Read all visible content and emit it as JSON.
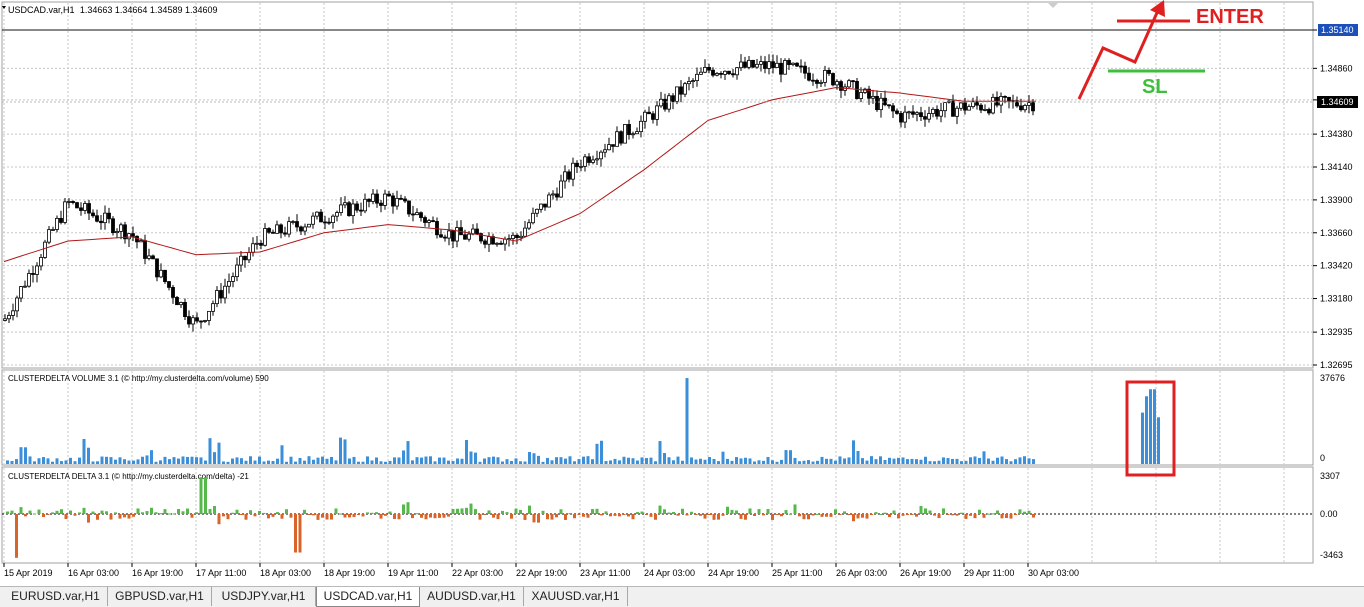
{
  "window": {
    "title": "USDCAD.var,H1",
    "ohlc": "1.34663 1.34664 1.34589 1.34609"
  },
  "price_axis": {
    "labels": [
      "1.35140",
      "1.34860",
      "1.34630",
      "1.34380",
      "1.34140",
      "1.33900",
      "1.33660",
      "1.33420",
      "1.33180",
      "1.32935",
      "1.32695"
    ],
    "marker_line": "1.35140",
    "current_price": "1.34609"
  },
  "annotations": {
    "enter_label": "ENTER",
    "sl_label": "SL",
    "enter_color": "#e02020",
    "sl_color": "#3cc03c"
  },
  "volume_panel": {
    "title": "CLUSTERDELTA VOLUME 3.1 (© http://my.clusterdelta.com/volume) 590",
    "axis_max": "37676",
    "axis_min": "0"
  },
  "delta_panel": {
    "title": "CLUSTERDELTA DELTA 3.1 (© http://my.clusterdelta.com/delta) -21",
    "axis_max": "3307",
    "axis_zero": "0.00",
    "axis_min": "-3463"
  },
  "time_axis": {
    "labels": [
      "15 Apr 2019",
      "16 Apr 03:00",
      "16 Apr 19:00",
      "17 Apr 11:00",
      "18 Apr 03:00",
      "18 Apr 19:00",
      "19 Apr 11:00",
      "22 Apr 03:00",
      "22 Apr 19:00",
      "23 Apr 11:00",
      "24 Apr 03:00",
      "24 Apr 19:00",
      "25 Apr 11:00",
      "26 Apr 03:00",
      "26 Apr 19:00",
      "29 Apr 11:00",
      "30 Apr 03:00"
    ]
  },
  "tabs": [
    "EURUSD.var,H1",
    "GBPUSD.var,H1",
    "USDJPY.var,H1",
    "USDCAD.var,H1",
    "AUDUSD.var,H1",
    "XAUUSD.var,H1"
  ],
  "active_tab": "USDCAD.var,H1",
  "colors": {
    "up_volume": "#3a8fd8",
    "delta_positive": "#55b84a",
    "delta_negative": "#d9642a",
    "moving_average": "#b01818",
    "highlight_box": "#e02020"
  },
  "chart_data": {
    "type": "candlestick",
    "symbol": "USDCAD.var",
    "timeframe": "H1",
    "close_path": [
      [
        "15 Apr 2019",
        1.3302
      ],
      [
        "16 Apr 03:00",
        1.3388
      ],
      [
        "16 Apr 19:00",
        1.3365
      ],
      [
        "17 Apr 11:00",
        1.3298
      ],
      [
        "18 Apr 03:00",
        1.3362
      ],
      [
        "18 Apr 19:00",
        1.3378
      ],
      [
        "19 Apr 11:00",
        1.3392
      ],
      [
        "22 Apr 03:00",
        1.3364
      ],
      [
        "22 Apr 19:00",
        1.3362
      ],
      [
        "23 Apr 11:00",
        1.3418
      ],
      [
        "24 Apr 03:00",
        1.3448
      ],
      [
        "24 Apr 19:00",
        1.3485
      ],
      [
        "25 Apr 11:00",
        1.3488
      ],
      [
        "26 Apr 03:00",
        1.3478
      ],
      [
        "26 Apr 19:00",
        1.3451
      ],
      [
        "29 Apr 11:00",
        1.3458
      ],
      [
        "30 Apr 03:00",
        1.34609
      ]
    ],
    "moving_average_path": [
      [
        "15 Apr 2019",
        1.3345
      ],
      [
        "16 Apr 03:00",
        1.336
      ],
      [
        "16 Apr 19:00",
        1.3363
      ],
      [
        "17 Apr 11:00",
        1.335
      ],
      [
        "18 Apr 03:00",
        1.3352
      ],
      [
        "18 Apr 19:00",
        1.3366
      ],
      [
        "19 Apr 11:00",
        1.3372
      ],
      [
        "22 Apr 03:00",
        1.3368
      ],
      [
        "22 Apr 19:00",
        1.336
      ],
      [
        "23 Apr 11:00",
        1.338
      ],
      [
        "24 Apr 03:00",
        1.3412
      ],
      [
        "24 Apr 19:00",
        1.3448
      ],
      [
        "25 Apr 11:00",
        1.3463
      ],
      [
        "26 Apr 03:00",
        1.3472
      ],
      [
        "26 Apr 19:00",
        1.3468
      ],
      [
        "29 Apr 11:00",
        1.3462
      ],
      [
        "30 Apr 03:00",
        1.3462
      ]
    ],
    "ylim": [
      1.32695,
      1.3514
    ],
    "volume_ylim": [
      0,
      37676
    ],
    "delta_ylim": [
      -3463,
      3307
    ],
    "volume_highlight": [
      22000,
      29000,
      32000,
      32000,
      20000
    ]
  }
}
